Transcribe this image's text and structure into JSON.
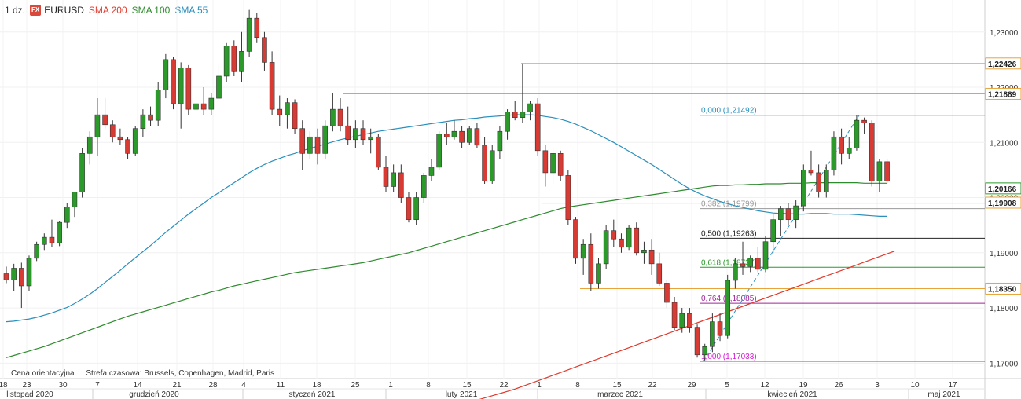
{
  "header": {
    "timeframe": "1 dz.",
    "fx_badge": "FX",
    "symbol": "EURUSD",
    "sma_labels": [
      {
        "text": "SMA 200",
        "color": "#e0392b"
      },
      {
        "text": "SMA 100",
        "color": "#2e8b2e"
      },
      {
        "text": "SMA 55",
        "color": "#2a8fbd"
      }
    ]
  },
  "footer": {
    "note": "Cena orientacyjna",
    "timezone": "Strefa czasowa: Brussels, Copenhagen, Madrid, Paris"
  },
  "chart_data": {
    "type": "candlestick",
    "y_range": [
      1.1672,
      1.2358
    ],
    "grid": true,
    "colors": {
      "up": "#2b9a2b",
      "down": "#d83a34",
      "sma200": "#e0392b",
      "sma100": "#2e8b2e",
      "sma55": "#2a8fbd",
      "level": "#e8a33a"
    },
    "y_ticks": [
      "1,17000",
      "1,18000",
      "1,19000",
      "1,20000",
      "1,21000",
      "1,22000",
      "1,23000"
    ],
    "x_ticks": [
      "18",
      "23",
      "30",
      "7",
      "14",
      "21",
      "28",
      "4",
      "11",
      "18",
      "25",
      "1",
      "8",
      "15",
      "22",
      "1",
      "8",
      "15",
      "22",
      "29",
      "5",
      "12",
      "19",
      "26",
      "3",
      "10",
      "17"
    ],
    "month_labels": [
      "listopad 2020",
      "grudzień 2020",
      "styczeń 2021",
      "luty 2021",
      "marzec 2021",
      "kwiecień 2021",
      "maj 2021"
    ],
    "horizontal_levels": [
      1.2243,
      1.2188,
      1.199,
      1.1835
    ],
    "price_labels": [
      "1,22426",
      "1,21889",
      "1,20166",
      "1,19908",
      "1,18350"
    ],
    "fibonacci": [
      {
        "label": "0,000 (1,21492)",
        "value": 1.21492,
        "color": "#2a8fbd"
      },
      {
        "label": "0,382 (1,19799)",
        "value": 1.19799,
        "color": "#999999"
      },
      {
        "label": "0,500 (1,19263)",
        "value": 1.19263,
        "color": "#222222"
      },
      {
        "label": "0,618 (1,18737)",
        "value": 1.18737,
        "color": "#2b9a2b"
      },
      {
        "label": "0,764 (1,18085)",
        "value": 1.18085,
        "color": "#a0259a"
      },
      {
        "label": "1,000 (1,17033)",
        "value": 1.17033,
        "color": "#d81bd8"
      }
    ],
    "candles": [
      [
        1.1862,
        1.1875,
        1.1845,
        1.1851
      ],
      [
        1.1851,
        1.188,
        1.183,
        1.1872
      ],
      [
        1.1872,
        1.1882,
        1.18,
        1.184
      ],
      [
        1.184,
        1.1895,
        1.183,
        1.189
      ],
      [
        1.189,
        1.192,
        1.1885,
        1.1915
      ],
      [
        1.1915,
        1.1935,
        1.1905,
        1.1928
      ],
      [
        1.1928,
        1.196,
        1.191,
        1.1918
      ],
      [
        1.1918,
        1.1958,
        1.1912,
        1.1955
      ],
      [
        1.1955,
        1.199,
        1.1945,
        1.1983
      ],
      [
        1.1983,
        1.201,
        1.1965,
        1.201
      ],
      [
        1.201,
        1.209,
        1.2,
        1.208
      ],
      [
        1.208,
        1.212,
        1.206,
        1.211
      ],
      [
        1.211,
        1.218,
        1.2075,
        1.215
      ],
      [
        1.215,
        1.218,
        1.2125,
        1.2132
      ],
      [
        1.2132,
        1.214,
        1.21,
        1.211
      ],
      [
        1.211,
        1.2125,
        1.2095,
        1.2105
      ],
      [
        1.2105,
        1.211,
        1.207,
        1.208
      ],
      [
        1.208,
        1.213,
        1.2075,
        1.2125
      ],
      [
        1.2125,
        1.216,
        1.211,
        1.215
      ],
      [
        1.215,
        1.2165,
        1.213,
        1.214
      ],
      [
        1.214,
        1.221,
        1.213,
        1.2195
      ],
      [
        1.2195,
        1.226,
        1.218,
        1.225
      ],
      [
        1.225,
        1.2255,
        1.216,
        1.217
      ],
      [
        1.217,
        1.2245,
        1.2125,
        1.2235
      ],
      [
        1.2235,
        1.224,
        1.215,
        1.216
      ],
      [
        1.216,
        1.218,
        1.214,
        1.217
      ],
      [
        1.217,
        1.22,
        1.215,
        1.216
      ],
      [
        1.216,
        1.219,
        1.215,
        1.218
      ],
      [
        1.218,
        1.224,
        1.2175,
        1.222
      ],
      [
        1.222,
        1.228,
        1.221,
        1.2275
      ],
      [
        1.2275,
        1.2285,
        1.222,
        1.2228
      ],
      [
        1.2228,
        1.23,
        1.221,
        1.2265
      ],
      [
        1.2265,
        1.234,
        1.2255,
        1.2325
      ],
      [
        1.2325,
        1.2335,
        1.228,
        1.229
      ],
      [
        1.229,
        1.23,
        1.223,
        1.2245
      ],
      [
        1.2245,
        1.2265,
        1.215,
        1.216
      ],
      [
        1.216,
        1.2185,
        1.213,
        1.215
      ],
      [
        1.215,
        1.218,
        1.2125,
        1.2172
      ],
      [
        1.2172,
        1.2178,
        1.2115,
        1.2125
      ],
      [
        1.2125,
        1.214,
        1.205,
        1.208
      ],
      [
        1.208,
        1.212,
        1.207,
        1.211
      ],
      [
        1.211,
        1.2125,
        1.206,
        1.208
      ],
      [
        1.208,
        1.214,
        1.207,
        1.213
      ],
      [
        1.213,
        1.219,
        1.212,
        1.216
      ],
      [
        1.216,
        1.218,
        1.212,
        1.213
      ],
      [
        1.213,
        1.2165,
        1.2095,
        1.2105
      ],
      [
        1.2105,
        1.214,
        1.209,
        1.2125
      ],
      [
        1.2125,
        1.214,
        1.2095,
        1.2105
      ],
      [
        1.2105,
        1.2125,
        1.208,
        1.211
      ],
      [
        1.211,
        1.2115,
        1.205,
        1.2055
      ],
      [
        1.2055,
        1.2075,
        1.201,
        1.202
      ],
      [
        1.202,
        1.206,
        1.201,
        1.2045
      ],
      [
        1.2045,
        1.206,
        1.199,
        1.2
      ],
      [
        1.2,
        1.201,
        1.1955,
        1.196
      ],
      [
        1.196,
        1.201,
        1.195,
        1.2
      ],
      [
        1.2,
        1.2045,
        1.199,
        1.204
      ],
      [
        1.204,
        1.207,
        1.203,
        1.2055
      ],
      [
        1.2055,
        1.212,
        1.205,
        1.2115
      ],
      [
        1.2115,
        1.2135,
        1.2095,
        1.211
      ],
      [
        1.211,
        1.214,
        1.2105,
        1.212
      ],
      [
        1.212,
        1.213,
        1.209,
        1.21
      ],
      [
        1.21,
        1.213,
        1.2095,
        1.2125
      ],
      [
        1.2125,
        1.2135,
        1.209,
        1.2095
      ],
      [
        1.2095,
        1.211,
        1.2025,
        1.203
      ],
      [
        1.203,
        1.2095,
        1.2025,
        1.2085
      ],
      [
        1.2085,
        1.213,
        1.207,
        1.212
      ],
      [
        1.212,
        1.216,
        1.2105,
        1.2155
      ],
      [
        1.2155,
        1.2175,
        1.214,
        1.2145
      ],
      [
        1.2145,
        1.2243,
        1.2135,
        1.2155
      ],
      [
        1.2155,
        1.2175,
        1.214,
        1.217
      ],
      [
        1.217,
        1.218,
        1.2075,
        1.2085
      ],
      [
        1.2085,
        1.2095,
        1.202,
        1.2045
      ],
      [
        1.2045,
        1.209,
        1.2025,
        1.208
      ],
      [
        1.208,
        1.2085,
        1.203,
        1.204
      ],
      [
        1.204,
        1.205,
        1.195,
        1.196
      ],
      [
        1.196,
        1.1965,
        1.188,
        1.189
      ],
      [
        1.189,
        1.1925,
        1.186,
        1.1915
      ],
      [
        1.1915,
        1.1935,
        1.183,
        1.1845
      ],
      [
        1.1845,
        1.189,
        1.1835,
        1.188
      ],
      [
        1.188,
        1.195,
        1.187,
        1.194
      ],
      [
        1.194,
        1.196,
        1.191,
        1.1925
      ],
      [
        1.1925,
        1.1935,
        1.19,
        1.191
      ],
      [
        1.191,
        1.195,
        1.1905,
        1.1945
      ],
      [
        1.1945,
        1.1955,
        1.1895,
        1.19
      ],
      [
        1.19,
        1.192,
        1.188,
        1.1905
      ],
      [
        1.1905,
        1.1925,
        1.186,
        1.188
      ],
      [
        1.188,
        1.19,
        1.184,
        1.1845
      ],
      [
        1.1845,
        1.185,
        1.18,
        1.181
      ],
      [
        1.181,
        1.182,
        1.176,
        1.1765
      ],
      [
        1.1765,
        1.18,
        1.1755,
        1.179
      ],
      [
        1.179,
        1.18,
        1.1755,
        1.1765
      ],
      [
        1.1765,
        1.177,
        1.171,
        1.1715
      ],
      [
        1.1715,
        1.1735,
        1.1705,
        1.173
      ],
      [
        1.173,
        1.179,
        1.172,
        1.1775
      ],
      [
        1.1775,
        1.179,
        1.174,
        1.175
      ],
      [
        1.175,
        1.186,
        1.1745,
        1.185
      ],
      [
        1.185,
        1.189,
        1.1835,
        1.188
      ],
      [
        1.188,
        1.192,
        1.186,
        1.1875
      ],
      [
        1.1875,
        1.1895,
        1.1865,
        1.189
      ],
      [
        1.189,
        1.191,
        1.1865,
        1.187
      ],
      [
        1.187,
        1.193,
        1.1865,
        1.192
      ],
      [
        1.192,
        1.197,
        1.19,
        1.196
      ],
      [
        1.196,
        1.1985,
        1.193,
        1.198
      ],
      [
        1.198,
        1.199,
        1.195,
        1.196
      ],
      [
        1.196,
        1.1995,
        1.1945,
        1.1985
      ],
      [
        1.1985,
        1.206,
        1.1975,
        1.205
      ],
      [
        1.205,
        1.2085,
        1.204,
        1.2045
      ],
      [
        1.2045,
        1.206,
        1.2,
        1.201
      ],
      [
        1.201,
        1.206,
        1.2,
        1.205
      ],
      [
        1.205,
        1.212,
        1.204,
        1.211
      ],
      [
        1.211,
        1.2125,
        1.206,
        1.208
      ],
      [
        1.208,
        1.211,
        1.207,
        1.209
      ],
      [
        1.209,
        1.2149,
        1.2085,
        1.214
      ],
      [
        1.214,
        1.2145,
        1.2115,
        1.2135
      ],
      [
        1.2135,
        1.214,
        1.202,
        1.203
      ],
      [
        1.203,
        1.207,
        1.201,
        1.2065
      ],
      [
        1.2065,
        1.207,
        1.2025,
        1.203
      ]
    ],
    "sma55": [
      1.1775,
      1.1776,
      1.1778,
      1.178,
      1.1783,
      1.1787,
      1.1791,
      1.1796,
      1.1801,
      1.1808,
      1.1816,
      1.1825,
      1.1835,
      1.1846,
      1.1857,
      1.1868,
      1.188,
      1.1891,
      1.1902,
      1.1913,
      1.1925,
      1.1937,
      1.1948,
      1.1959,
      1.197,
      1.198,
      1.199,
      1.2,
      1.2009,
      1.2018,
      1.2027,
      1.2036,
      1.2045,
      1.2053,
      1.206,
      1.2066,
      1.2071,
      1.2076,
      1.208,
      1.2085,
      1.2089,
      1.2093,
      1.2097,
      1.2101,
      1.2105,
      1.2108,
      1.2111,
      1.2114,
      1.2117,
      1.212,
      1.2122,
      1.2124,
      1.2126,
      1.2128,
      1.213,
      1.2132,
      1.2134,
      1.2136,
      1.2138,
      1.214,
      1.2141,
      1.2143,
      1.2144,
      1.2146,
      1.2147,
      1.2148,
      1.2149,
      1.215,
      1.215,
      1.215,
      1.2149,
      1.2147,
      1.2145,
      1.2142,
      1.2138,
      1.2133,
      1.2127,
      1.2121,
      1.2114,
      1.2107,
      1.21,
      1.2092,
      1.2084,
      1.2076,
      1.2068,
      1.206,
      1.2051,
      1.2042,
      1.2033,
      1.2024,
      1.2016,
      1.2009,
      1.2003,
      1.1998,
      1.1993,
      1.1989,
      1.1985,
      1.1982,
      1.1979,
      1.1976,
      1.1974,
      1.1972,
      1.1971,
      1.1971,
      1.197,
      1.197,
      1.1971,
      1.1971,
      1.1971,
      1.197,
      1.197,
      1.197,
      1.1969,
      1.1968,
      1.1967,
      1.1966,
      1.1966
    ],
    "sma100": [
      1.171,
      1.1714,
      1.1718,
      1.1722,
      1.1726,
      1.173,
      1.1735,
      1.174,
      1.1745,
      1.175,
      1.1755,
      1.176,
      1.1765,
      1.177,
      1.1775,
      1.178,
      1.1785,
      1.1789,
      1.1793,
      1.1797,
      1.1801,
      1.1805,
      1.1809,
      1.1813,
      1.1817,
      1.1821,
      1.1825,
      1.1829,
      1.1832,
      1.1836,
      1.184,
      1.1843,
      1.1846,
      1.1849,
      1.1852,
      1.1855,
      1.1858,
      1.1861,
      1.1864,
      1.1866,
      1.1868,
      1.187,
      1.1872,
      1.1874,
      1.1876,
      1.1878,
      1.188,
      1.1882,
      1.1885,
      1.1888,
      1.1891,
      1.1894,
      1.1897,
      1.19,
      1.1904,
      1.1908,
      1.1912,
      1.1916,
      1.192,
      1.1924,
      1.1928,
      1.1932,
      1.1936,
      1.194,
      1.1944,
      1.1948,
      1.1952,
      1.1956,
      1.196,
      1.1964,
      1.1968,
      1.1972,
      1.1976,
      1.198,
      1.1983,
      1.1985,
      1.1987,
      1.1989,
      1.1991,
      1.1993,
      1.1995,
      1.1997,
      1.1999,
      1.2001,
      1.2003,
      1.2005,
      1.2007,
      1.2009,
      1.2011,
      1.2013,
      1.2015,
      1.2017,
      1.2019,
      1.2021,
      1.2022,
      1.2022,
      1.2023,
      1.2023,
      1.2024,
      1.2024,
      1.2025,
      1.2025,
      1.2025,
      1.2026,
      1.2026,
      1.2026,
      1.2027,
      1.2027,
      1.2027,
      1.2027,
      1.2027,
      1.2027,
      1.2027,
      1.2026,
      1.2026,
      1.2026,
      1.2026
    ],
    "sma200": [
      1.1633,
      1.1637,
      1.1641,
      1.1645,
      1.1649,
      1.1653,
      1.1658,
      1.1663,
      1.1668,
      1.1673,
      1.1678,
      1.1683,
      1.1688,
      1.1693,
      1.1698,
      1.1703,
      1.1708,
      1.1713,
      1.1718,
      1.1723,
      1.1728,
      1.1733,
      1.1738,
      1.1743,
      1.1748,
      1.1753,
      1.1758,
      1.1763,
      1.1768,
      1.1773,
      1.1778,
      1.1783,
      1.1788,
      1.1793,
      1.1798,
      1.1803,
      1.1808,
      1.1813,
      1.1818,
      1.1823,
      1.1828,
      1.1833,
      1.1838,
      1.1843,
      1.1848,
      1.1853,
      1.1858,
      1.1863,
      1.1868,
      1.1873,
      1.1878,
      1.1883,
      1.1888,
      1.1893,
      1.1898,
      1.1903
    ]
  }
}
